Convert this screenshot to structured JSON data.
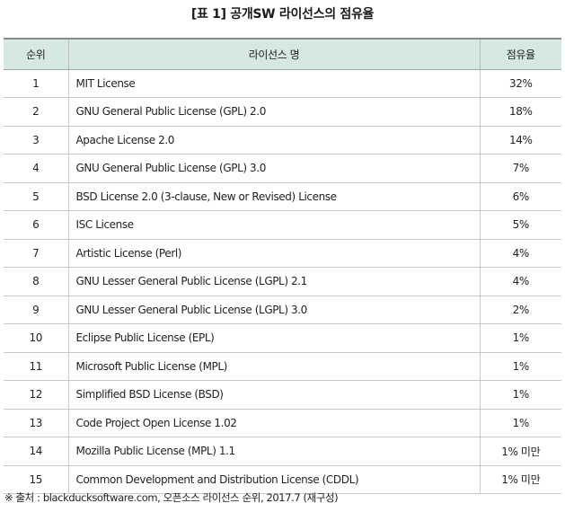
{
  "title": "[표 1] 공개SW 라이선스의 점유율",
  "table": {
    "headers": [
      "순위",
      "라이선스 명",
      "점유율"
    ],
    "rows": [
      {
        "rank": "1",
        "name": "MIT License",
        "share": "32%"
      },
      {
        "rank": "2",
        "name": "GNU General Public License (GPL) 2.0",
        "share": "18%"
      },
      {
        "rank": "3",
        "name": "Apache License 2.0",
        "share": "14%"
      },
      {
        "rank": "4",
        "name": "GNU General Public License (GPL) 3.0",
        "share": "7%"
      },
      {
        "rank": "5",
        "name": "BSD License 2.0 (3-clause, New or Revised) License",
        "share": "6%"
      },
      {
        "rank": "6",
        "name": "ISC License",
        "share": "5%"
      },
      {
        "rank": "7",
        "name": "Artistic License (Perl)",
        "share": "4%"
      },
      {
        "rank": "8",
        "name": "GNU Lesser General Public License (LGPL) 2.1",
        "share": "4%"
      },
      {
        "rank": "9",
        "name": "GNU Lesser General Public License (LGPL) 3.0",
        "share": "2%"
      },
      {
        "rank": "10",
        "name": "Eclipse Public License (EPL)",
        "share": "1%"
      },
      {
        "rank": "11",
        "name": "Microsoft Public License (MPL)",
        "share": "1%"
      },
      {
        "rank": "12",
        "name": "Simplified BSD License (BSD)",
        "share": "1%"
      },
      {
        "rank": "13",
        "name": "Code Project Open License 1.02",
        "share": "1%"
      },
      {
        "rank": "14",
        "name": "Mozilla Public License (MPL) 1.1",
        "share": "1% 미만"
      },
      {
        "rank": "15",
        "name": "Common Development and Distribution License (CDDL)",
        "share": "1% 미만"
      }
    ]
  },
  "source": "※ 출처 : blackducksoftware.com, 오픈소스 라이선스 순위, 2017.7 (재구성)",
  "colors": {
    "header_bg": "#d5e8e4",
    "rule": "#8a8a8a"
  }
}
